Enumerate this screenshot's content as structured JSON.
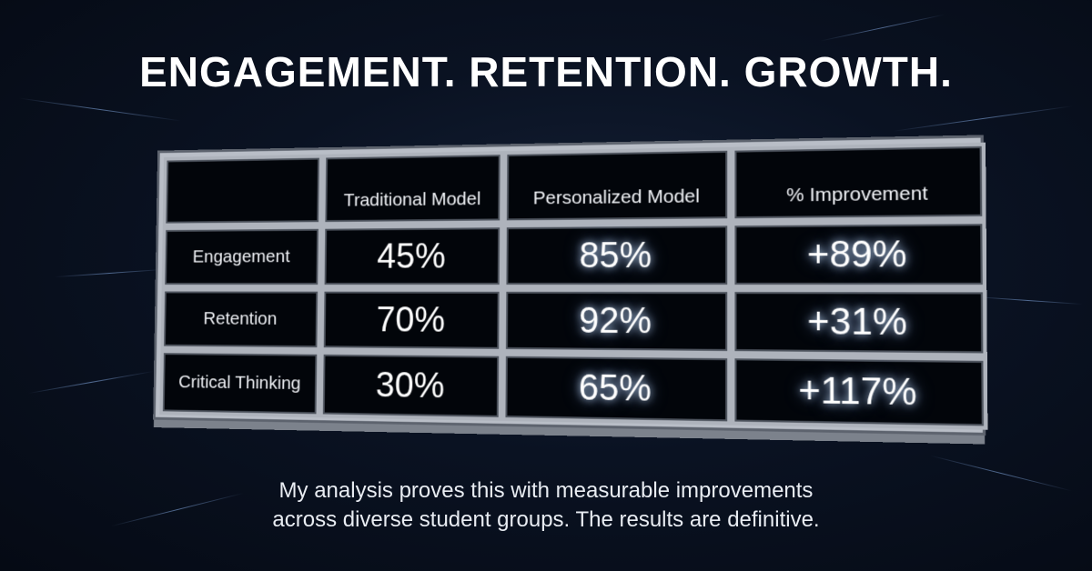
{
  "title": "ENGAGEMENT. RETENTION. GROWTH.",
  "chart_data": {
    "type": "table",
    "columns": [
      "",
      "Traditional Model",
      "Personalized Model",
      "% Improvement"
    ],
    "rows": [
      {
        "label": "Engagement",
        "traditional": "45%",
        "personalized": "85%",
        "improvement": "+89%"
      },
      {
        "label": "Retention",
        "traditional": "70%",
        "personalized": "92%",
        "improvement": "+31%"
      },
      {
        "label": "Critical Thinking",
        "traditional": "30%",
        "personalized": "65%",
        "improvement": "+117%"
      }
    ]
  },
  "caption": {
    "line1": "My analysis proves this with measurable improvements",
    "line2": "across diverse student groups. The results are definitive."
  },
  "colors": {
    "background": "#0a1222",
    "frame": "#b9bec7",
    "text": "#ffffff"
  }
}
